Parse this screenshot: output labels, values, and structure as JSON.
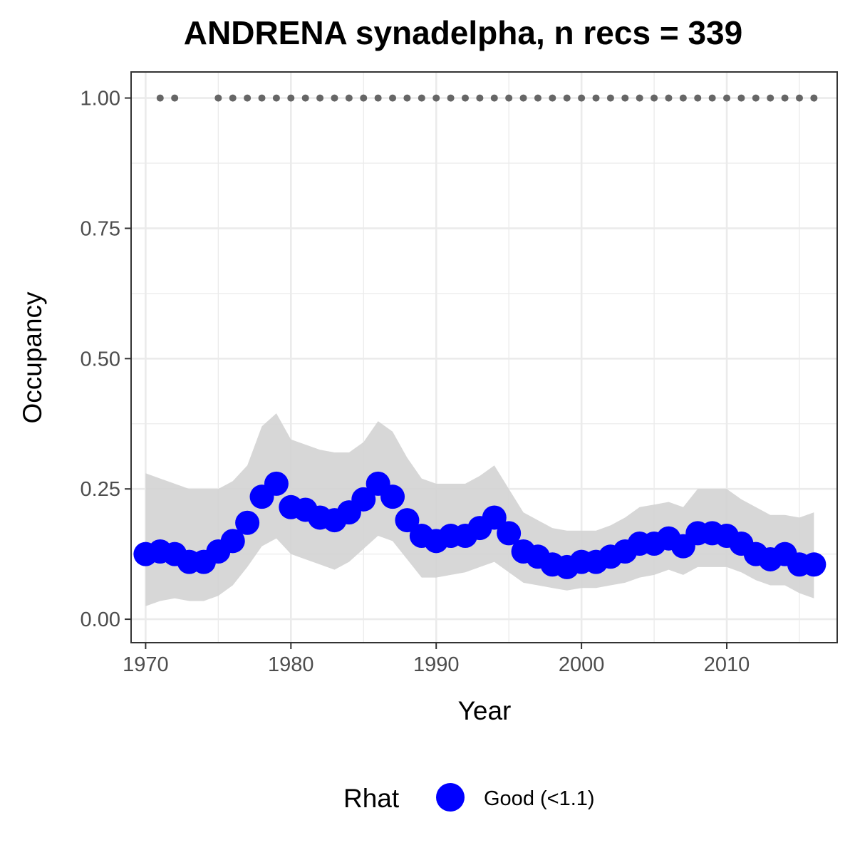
{
  "chart_data": {
    "type": "line",
    "title": "ANDRENA synadelpha, n recs = 339",
    "xlabel": "Year",
    "ylabel": "Occupancy",
    "xlim": [
      1969,
      2017.6
    ],
    "ylim": [
      -0.045,
      1.05
    ],
    "x_ticks": [
      1970,
      1980,
      1990,
      2000,
      2010
    ],
    "x_tick_labels": [
      "1970",
      "1980",
      "1990",
      "2000",
      "2010"
    ],
    "y_ticks": [
      0,
      0.25,
      0.5,
      0.75,
      1.0
    ],
    "y_tick_labels": [
      "0.00",
      "0.25",
      "0.50",
      "0.75",
      "1.00"
    ],
    "grid": true,
    "legend": {
      "title": "Rhat",
      "position": "bottom",
      "entries": [
        {
          "label": "Good (<1.1)",
          "color": "#0000ff"
        }
      ]
    },
    "colors": {
      "points": "#0000ff",
      "ribbon": "#d3d3d3",
      "record_dots": "#666666"
    },
    "series": [
      {
        "name": "Good (<1.1)",
        "x": [
          1970,
          1971,
          1972,
          1973,
          1974,
          1975,
          1976,
          1977,
          1978,
          1979,
          1980,
          1981,
          1982,
          1983,
          1984,
          1985,
          1986,
          1987,
          1988,
          1989,
          1990,
          1991,
          1992,
          1993,
          1994,
          1995,
          1996,
          1997,
          1998,
          1999,
          2000,
          2001,
          2002,
          2003,
          2004,
          2005,
          2006,
          2007,
          2008,
          2009,
          2010,
          2011,
          2012,
          2013,
          2014,
          2015,
          2016
        ],
        "y": [
          0.125,
          0.13,
          0.125,
          0.11,
          0.11,
          0.13,
          0.15,
          0.185,
          0.235,
          0.26,
          0.215,
          0.21,
          0.195,
          0.19,
          0.205,
          0.23,
          0.26,
          0.235,
          0.19,
          0.16,
          0.15,
          0.16,
          0.16,
          0.175,
          0.195,
          0.165,
          0.13,
          0.12,
          0.105,
          0.1,
          0.11,
          0.11,
          0.12,
          0.13,
          0.145,
          0.145,
          0.155,
          0.14,
          0.165,
          0.165,
          0.16,
          0.145,
          0.125,
          0.115,
          0.125,
          0.105,
          0.105
        ],
        "lower": [
          0.025,
          0.035,
          0.04,
          0.035,
          0.035,
          0.045,
          0.065,
          0.1,
          0.14,
          0.155,
          0.125,
          0.115,
          0.105,
          0.095,
          0.11,
          0.135,
          0.16,
          0.15,
          0.115,
          0.08,
          0.08,
          0.085,
          0.09,
          0.1,
          0.11,
          0.09,
          0.07,
          0.065,
          0.06,
          0.055,
          0.06,
          0.06,
          0.065,
          0.07,
          0.08,
          0.085,
          0.095,
          0.085,
          0.1,
          0.1,
          0.1,
          0.09,
          0.075,
          0.065,
          0.065,
          0.05,
          0.04
        ],
        "upper": [
          0.28,
          0.27,
          0.26,
          0.25,
          0.25,
          0.25,
          0.265,
          0.295,
          0.37,
          0.395,
          0.345,
          0.335,
          0.325,
          0.32,
          0.32,
          0.34,
          0.38,
          0.36,
          0.31,
          0.27,
          0.26,
          0.26,
          0.26,
          0.275,
          0.295,
          0.25,
          0.205,
          0.19,
          0.175,
          0.17,
          0.17,
          0.17,
          0.18,
          0.195,
          0.215,
          0.22,
          0.225,
          0.215,
          0.25,
          0.25,
          0.25,
          0.23,
          0.215,
          0.2,
          0.2,
          0.195,
          0.205
        ]
      }
    ],
    "record_years": {
      "y": 1.0,
      "x": [
        1971,
        1972,
        1975,
        1976,
        1977,
        1978,
        1979,
        1980,
        1981,
        1982,
        1983,
        1984,
        1985,
        1986,
        1987,
        1988,
        1989,
        1990,
        1991,
        1992,
        1993,
        1994,
        1995,
        1996,
        1997,
        1998,
        1999,
        2000,
        2001,
        2002,
        2003,
        2004,
        2005,
        2006,
        2007,
        2008,
        2009,
        2010,
        2011,
        2012,
        2013,
        2014,
        2015,
        2016
      ]
    }
  }
}
